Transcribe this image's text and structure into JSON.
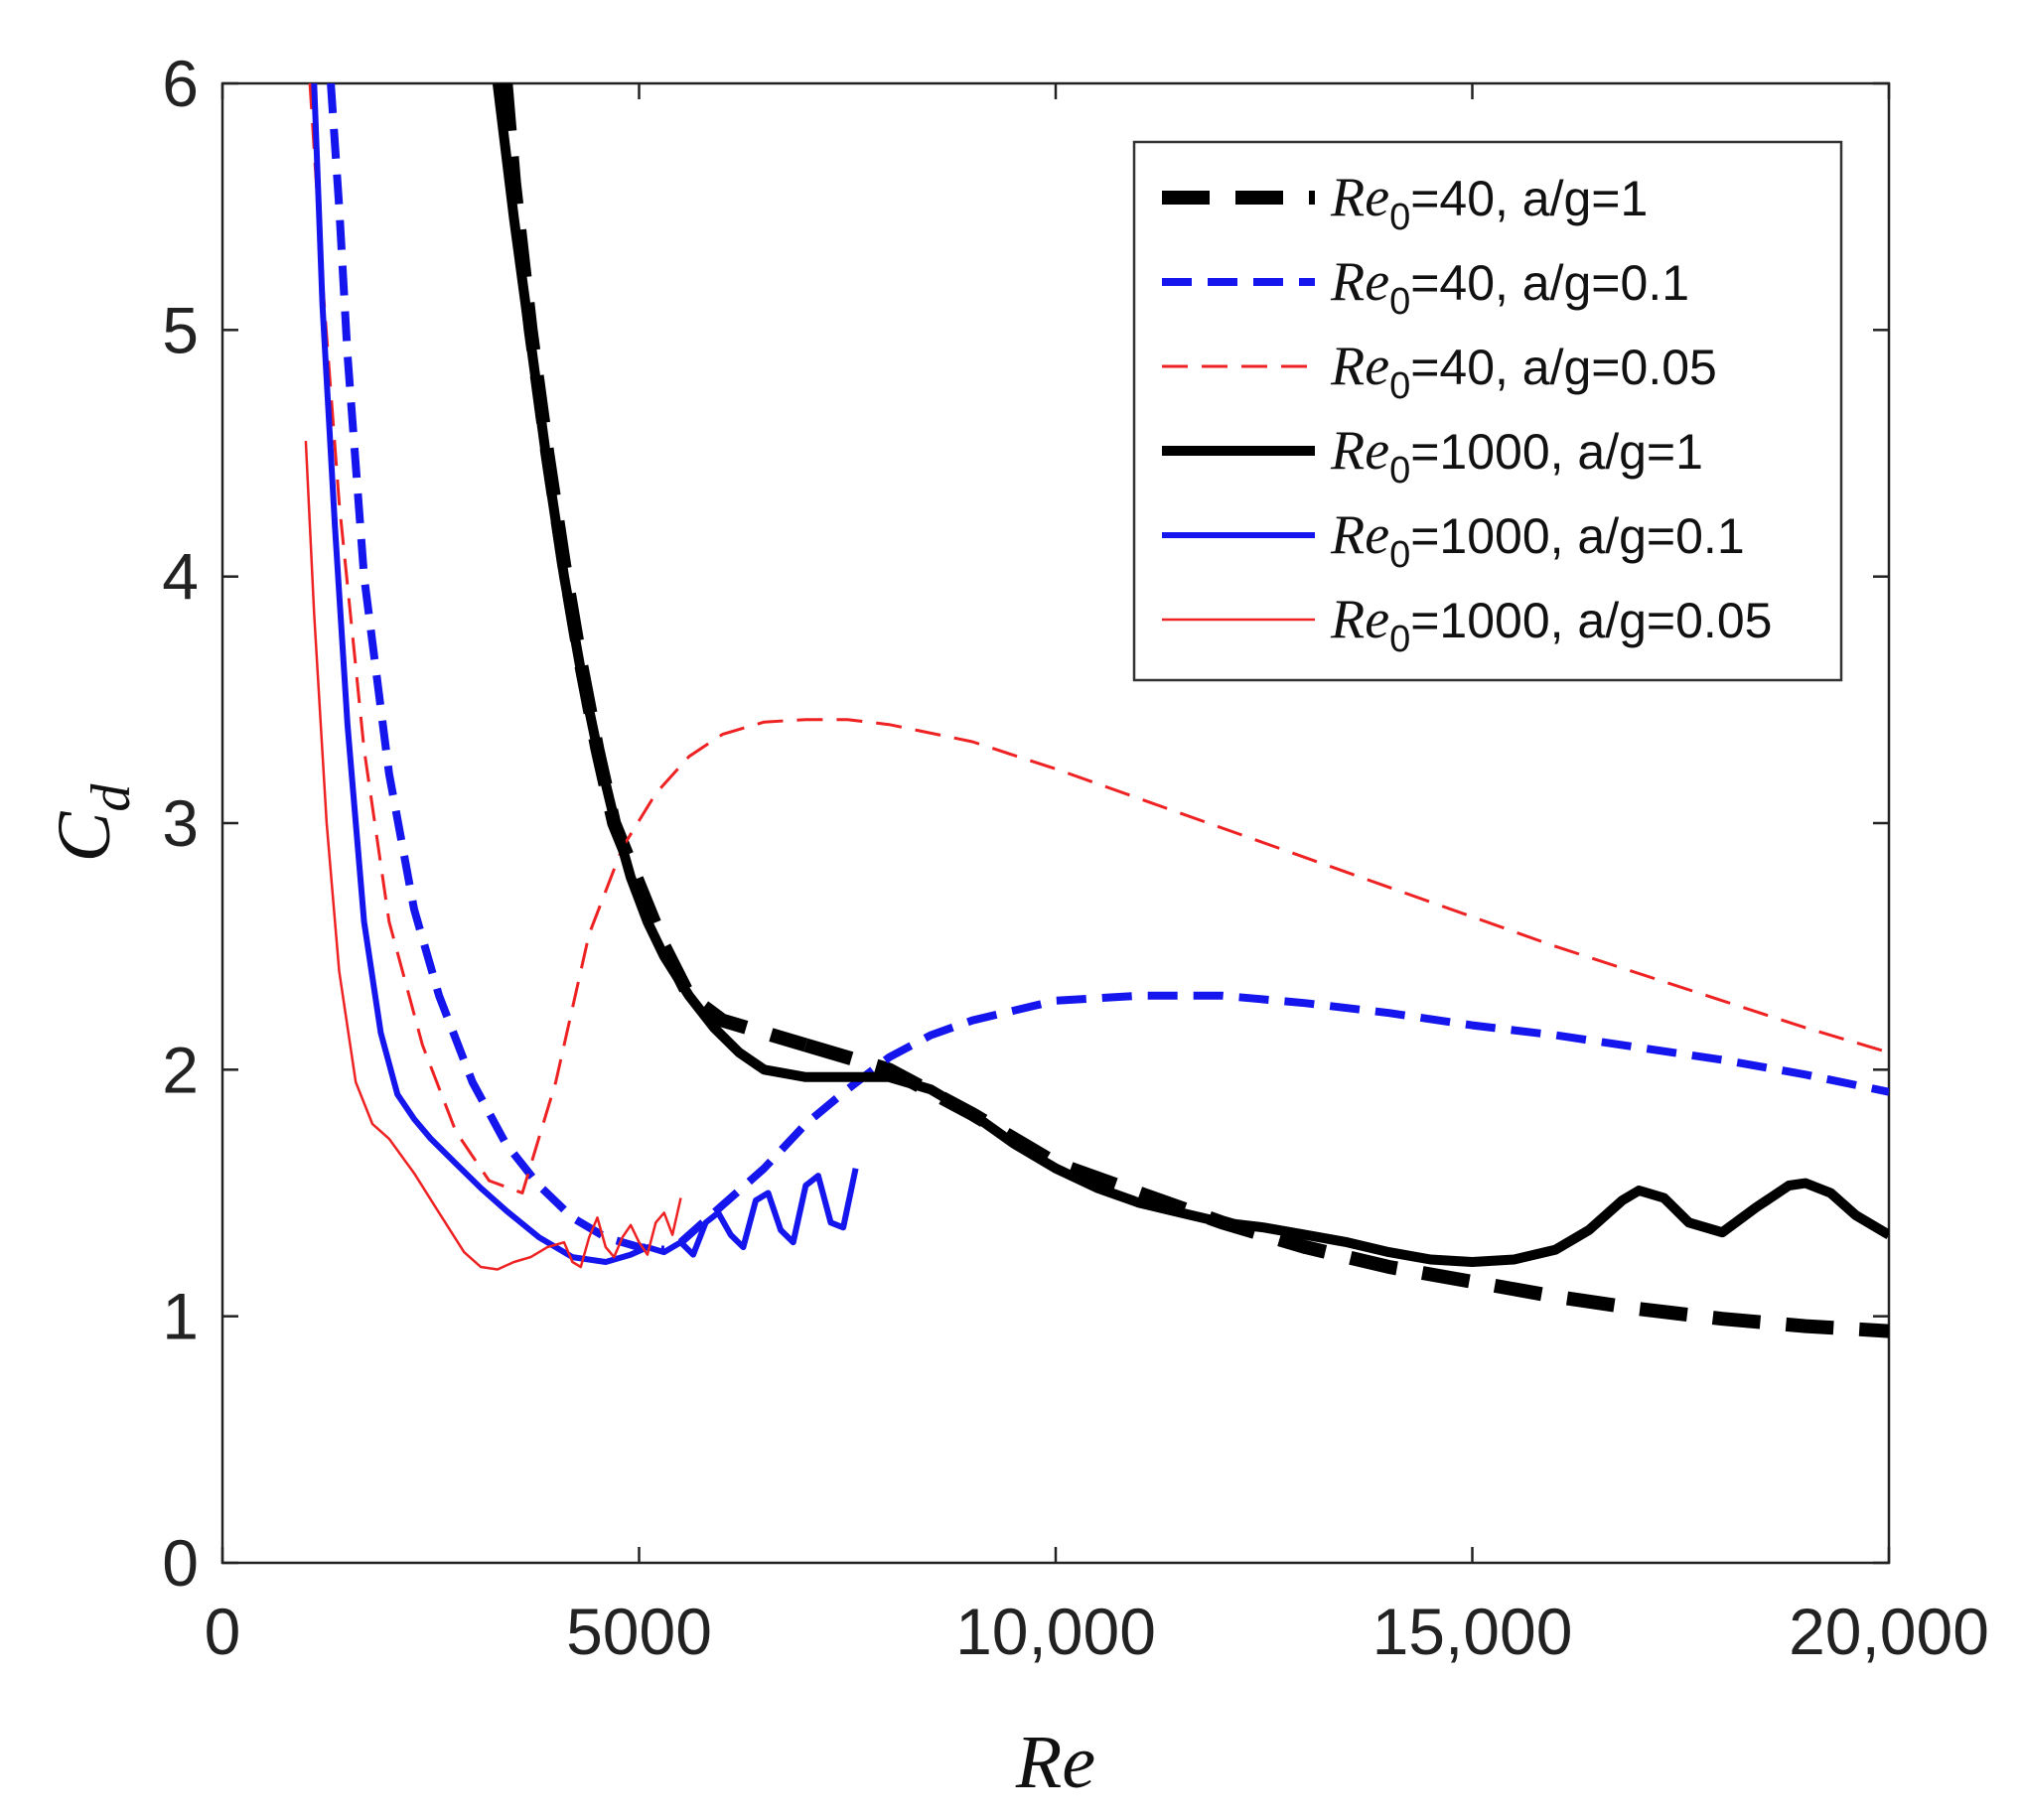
{
  "chart_data": {
    "type": "line",
    "title": "",
    "xlabel": "Re",
    "ylabel": "C_d",
    "xlim": [
      0,
      20000
    ],
    "ylim": [
      0,
      6
    ],
    "xticks": [
      0,
      5000,
      10000,
      15000,
      20000
    ],
    "xtick_labels": [
      "0",
      "5000",
      "10,000",
      "15,000",
      "20,000"
    ],
    "yticks": [
      0,
      1,
      2,
      3,
      4,
      5,
      6
    ],
    "ytick_labels": [
      "0",
      "1",
      "2",
      "3",
      "4",
      "5",
      "6"
    ],
    "grid": false,
    "legend_position": "top-right",
    "series": [
      {
        "name": "Re0=40, a/g=1",
        "legend_symbol": "Re",
        "legend_sub": "0",
        "legend_tail": "=40, a/g=1",
        "color": "#000000",
        "style": "dashed-thick",
        "x": [
          3400,
          3500,
          3700,
          3900,
          4100,
          4300,
          4500,
          4700,
          5000,
          5300,
          5600,
          6000,
          6500,
          7000
        ],
        "y": [
          6.0,
          5.6,
          5.0,
          4.5,
          4.05,
          3.65,
          3.3,
          3.0,
          2.75,
          2.5,
          2.3,
          2.2,
          2.15,
          2.1
        ]
      },
      {
        "name": "Re0=40, a/g=1 (continued)",
        "legend_hidden": true,
        "color": "#000000",
        "style": "dashed-thick",
        "x": [
          7000,
          8000,
          9000,
          10000,
          11000,
          12000,
          13000,
          14000,
          15000,
          16000,
          17000,
          18000,
          19000,
          20000
        ],
        "y": [
          2.1,
          2.0,
          1.82,
          1.62,
          1.5,
          1.38,
          1.28,
          1.2,
          1.14,
          1.08,
          1.03,
          0.99,
          0.96,
          0.94
        ]
      },
      {
        "name": "Re0=40, a/g=0.1",
        "legend_symbol": "Re",
        "legend_sub": "0",
        "legend_tail": "=40, a/g=0.1",
        "color": "#1515ee",
        "style": "dashed-medium",
        "x": [
          1300,
          1400,
          1500,
          1700,
          2000,
          2300,
          2600,
          3000,
          3400,
          3800,
          4200,
          4600,
          5000,
          5300
        ],
        "y": [
          6.0,
          5.5,
          4.9,
          4.0,
          3.2,
          2.65,
          2.3,
          1.95,
          1.7,
          1.53,
          1.4,
          1.32,
          1.28,
          1.27
        ]
      },
      {
        "name": "Re0=40, a/g=0.1 (continued)",
        "legend_hidden": true,
        "color": "#1515ee",
        "style": "dashed-medium",
        "x": [
          5500,
          6000,
          6500,
          7000,
          7500,
          8000,
          8500,
          9000,
          10000,
          11000,
          12000,
          13000,
          14000,
          15000,
          16000,
          17000,
          18000,
          19000,
          20000
        ],
        "y": [
          1.3,
          1.45,
          1.6,
          1.78,
          1.92,
          2.05,
          2.14,
          2.2,
          2.28,
          2.3,
          2.3,
          2.27,
          2.23,
          2.18,
          2.14,
          2.09,
          2.04,
          1.98,
          1.91
        ]
      },
      {
        "name": "Re0=40, a/g=0.05",
        "legend_symbol": "Re",
        "legend_sub": "0",
        "legend_tail": "=40, a/g=0.05",
        "color": "#ee2222",
        "style": "dashed-thin",
        "x": [
          1050,
          1200,
          1400,
          1700,
          2000,
          2400,
          2800,
          3200,
          3600,
          4000,
          4400,
          4800,
          5200,
          5600,
          6000,
          6500,
          7000,
          7500,
          8000,
          9000,
          10000,
          11000,
          12000,
          13000,
          14000,
          15000,
          16000,
          17000,
          18000,
          19000,
          20000
        ],
        "y": [
          6.0,
          5.2,
          4.3,
          3.3,
          2.6,
          2.1,
          1.75,
          1.55,
          1.5,
          1.95,
          2.55,
          2.9,
          3.12,
          3.27,
          3.36,
          3.41,
          3.42,
          3.42,
          3.4,
          3.33,
          3.22,
          3.1,
          2.98,
          2.86,
          2.74,
          2.62,
          2.5,
          2.39,
          2.28,
          2.17,
          2.07
        ]
      },
      {
        "name": "Re0=1000, a/g=1",
        "legend_symbol": "Re",
        "legend_sub": "0",
        "legend_tail": "=1000, a/g=1",
        "color": "#000000",
        "style": "solid-thick",
        "x": [
          3300,
          3500,
          3700,
          3900,
          4100,
          4300,
          4500,
          4700,
          4900,
          5100,
          5300,
          5600,
          5900,
          6200,
          6500,
          7000,
          7500,
          8000,
          8500,
          9000,
          9500,
          10000,
          10500,
          11000,
          11500,
          12000,
          12500,
          13000,
          13500,
          14000,
          14500,
          15000,
          15500,
          16000,
          16400,
          16800,
          17000,
          17300,
          17600,
          18000,
          18400,
          18800,
          19000,
          19300,
          19600,
          20000
        ],
        "y": [
          6.0,
          5.45,
          4.95,
          4.45,
          4.0,
          3.62,
          3.3,
          3.02,
          2.78,
          2.6,
          2.46,
          2.3,
          2.17,
          2.07,
          2.0,
          1.97,
          1.97,
          1.97,
          1.92,
          1.82,
          1.7,
          1.6,
          1.52,
          1.46,
          1.42,
          1.38,
          1.36,
          1.33,
          1.3,
          1.26,
          1.23,
          1.22,
          1.23,
          1.27,
          1.35,
          1.47,
          1.51,
          1.48,
          1.38,
          1.34,
          1.44,
          1.53,
          1.54,
          1.5,
          1.41,
          1.33
        ]
      },
      {
        "name": "Re0=1000, a/g=0.1",
        "legend_symbol": "Re",
        "legend_sub": "0",
        "legend_tail": "=1000, a/g=0.1",
        "color": "#1515ee",
        "style": "solid-medium",
        "x": [
          1100,
          1200,
          1350,
          1500,
          1700,
          1900,
          2100,
          2300,
          2500,
          2800,
          3100,
          3400,
          3800,
          4200,
          4600,
          4900,
          5100,
          5300,
          5500,
          5650,
          5800,
          5950,
          6100,
          6250,
          6400,
          6550,
          6700,
          6850,
          7000,
          7150,
          7300,
          7450,
          7600
        ],
        "y": [
          6.0,
          5.1,
          4.2,
          3.4,
          2.6,
          2.15,
          1.9,
          1.8,
          1.72,
          1.62,
          1.52,
          1.43,
          1.32,
          1.24,
          1.22,
          1.25,
          1.28,
          1.26,
          1.3,
          1.25,
          1.38,
          1.42,
          1.33,
          1.28,
          1.47,
          1.5,
          1.35,
          1.3,
          1.53,
          1.57,
          1.38,
          1.36,
          1.6
        ]
      },
      {
        "name": "Re0=1000, a/g=0.05",
        "legend_symbol": "Re",
        "legend_sub": "0",
        "legend_tail": "=1000, a/g=0.05",
        "color": "#ee2222",
        "style": "solid-thin",
        "x": [
          1000,
          1100,
          1250,
          1400,
          1600,
          1800,
          2000,
          2300,
          2600,
          2900,
          3100,
          3300,
          3500,
          3700,
          3900,
          4100,
          4200,
          4300,
          4400,
          4500,
          4600,
          4700,
          4800,
          4900,
          5000,
          5100,
          5200,
          5300,
          5400,
          5500
        ],
        "y": [
          4.55,
          3.85,
          3.0,
          2.4,
          1.95,
          1.78,
          1.72,
          1.58,
          1.42,
          1.26,
          1.2,
          1.19,
          1.22,
          1.24,
          1.28,
          1.3,
          1.22,
          1.2,
          1.32,
          1.4,
          1.28,
          1.24,
          1.32,
          1.37,
          1.3,
          1.25,
          1.38,
          1.42,
          1.33,
          1.48
        ]
      }
    ]
  }
}
